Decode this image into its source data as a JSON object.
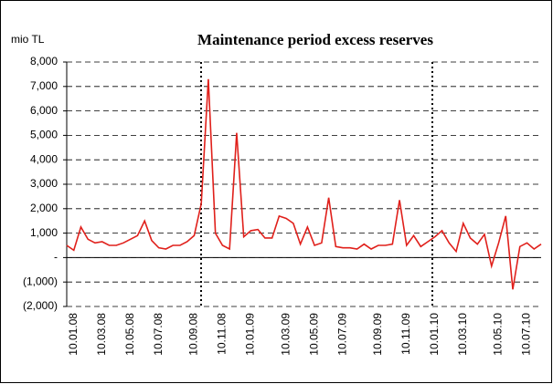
{
  "chart_data": {
    "type": "line",
    "title": "Maintenance period excess reserves",
    "y_label": "mio TL",
    "categories": [
      null,
      "10.01.08",
      null,
      null,
      null,
      "10.03.08",
      null,
      null,
      null,
      "10.05.08",
      null,
      null,
      null,
      "10.07.08",
      null,
      null,
      null,
      null,
      "10.09.08",
      null,
      null,
      null,
      "10.11.08",
      null,
      null,
      null,
      "10.01.09",
      null,
      null,
      null,
      null,
      "10.03.09",
      null,
      null,
      null,
      "10.05.09",
      null,
      null,
      null,
      "10.07.09",
      null,
      null,
      null,
      null,
      "10.09.09",
      null,
      null,
      null,
      "10.11.09",
      null,
      null,
      null,
      "10.01.10",
      null,
      null,
      null,
      "10.03.10",
      null,
      null,
      null,
      null,
      "10.05.10",
      null,
      null,
      null,
      "10.07.10",
      null,
      null
    ],
    "series": [
      {
        "name": "Excess reserves",
        "color": "#e0201b",
        "values": [
          500,
          300,
          1250,
          750,
          600,
          650,
          500,
          500,
          600,
          750,
          900,
          1500,
          700,
          400,
          350,
          500,
          500,
          650,
          900,
          2200,
          7300,
          1000,
          500,
          350,
          5100,
          850,
          1100,
          1150,
          800,
          800,
          1700,
          1600,
          1400,
          550,
          1250,
          500,
          600,
          2450,
          450,
          400,
          400,
          350,
          550,
          350,
          500,
          500,
          550,
          2350,
          500,
          900,
          450,
          650,
          850,
          1100,
          600,
          250,
          1400,
          800,
          550,
          950,
          -350,
          600,
          1700,
          -1300,
          450,
          600,
          350,
          550
        ]
      }
    ],
    "ylim": [
      -2000,
      8000
    ],
    "yticks": [
      {
        "value": -2000,
        "label": "(2,000)"
      },
      {
        "value": -1000,
        "label": "(1,000)"
      },
      {
        "value": 0,
        "label": "-"
      },
      {
        "value": 1000,
        "label": "1,000"
      },
      {
        "value": 2000,
        "label": "2,000"
      },
      {
        "value": 3000,
        "label": "3,000"
      },
      {
        "value": 4000,
        "label": "4,000"
      },
      {
        "value": 5000,
        "label": "5,000"
      },
      {
        "value": 6000,
        "label": "6,000"
      },
      {
        "value": 7000,
        "label": "7,000"
      },
      {
        "value": 8000,
        "label": "8,000"
      }
    ],
    "grid": true
  }
}
